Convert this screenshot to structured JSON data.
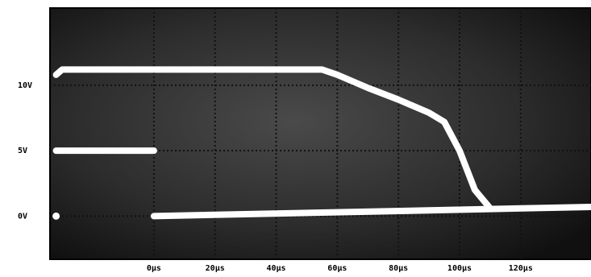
{
  "chart_data": {
    "type": "line",
    "xlim": [
      -34,
      143
    ],
    "ylim": [
      -3.3,
      15.9
    ],
    "xticks": [
      {
        "value": 0,
        "label": "0µs"
      },
      {
        "value": 20,
        "label": "20µs"
      },
      {
        "value": 40,
        "label": "40µs"
      },
      {
        "value": 60,
        "label": "60µs"
      },
      {
        "value": 80,
        "label": "80µs"
      },
      {
        "value": 100,
        "label": "100µs"
      },
      {
        "value": 120,
        "label": "120µs"
      }
    ],
    "yticks": [
      {
        "value": 0,
        "label": "0V"
      },
      {
        "value": 5,
        "label": "5V"
      },
      {
        "value": 10,
        "label": "10V"
      }
    ],
    "grid": true,
    "series": [
      {
        "color": "#ffffff",
        "x": [
          -32,
          -30,
          55,
          60,
          70,
          80,
          90,
          95,
          100,
          105,
          110
        ],
        "values": [
          10.8,
          11.2,
          11.2,
          10.8,
          9.8,
          8.9,
          7.9,
          7.2,
          5,
          2,
          0.6
        ]
      },
      {
        "color": "#ffffff",
        "x": [
          -32,
          0
        ],
        "values": [
          5,
          5
        ]
      },
      {
        "color": "#ffffff",
        "x": [
          0,
          143
        ],
        "values": [
          0,
          0.7
        ]
      },
      {
        "color": "#ffffff",
        "x": [
          -32
        ],
        "values": [
          0
        ]
      }
    ]
  }
}
